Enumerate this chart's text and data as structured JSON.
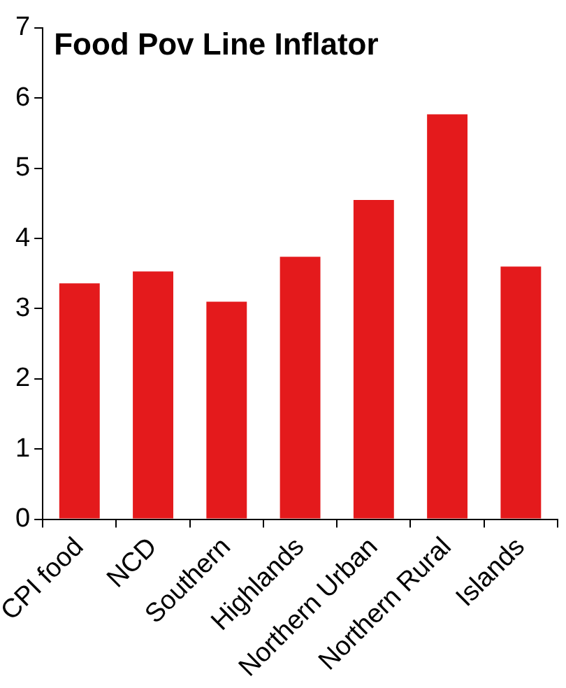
{
  "chart_data": {
    "type": "bar",
    "title": "Food Pov Line Inflator",
    "categories": [
      "CPI food",
      "NCD",
      "Southern",
      "Highlands",
      "Northern Urban",
      "Northern Rural",
      "Islands"
    ],
    "values": [
      3.36,
      3.53,
      3.1,
      3.74,
      4.55,
      5.77,
      3.6
    ],
    "color": "#e41a1c",
    "ylim": [
      0,
      7
    ],
    "yticks": [
      0,
      1,
      2,
      3,
      4,
      5,
      6,
      7
    ],
    "grid": false,
    "legend": false
  }
}
